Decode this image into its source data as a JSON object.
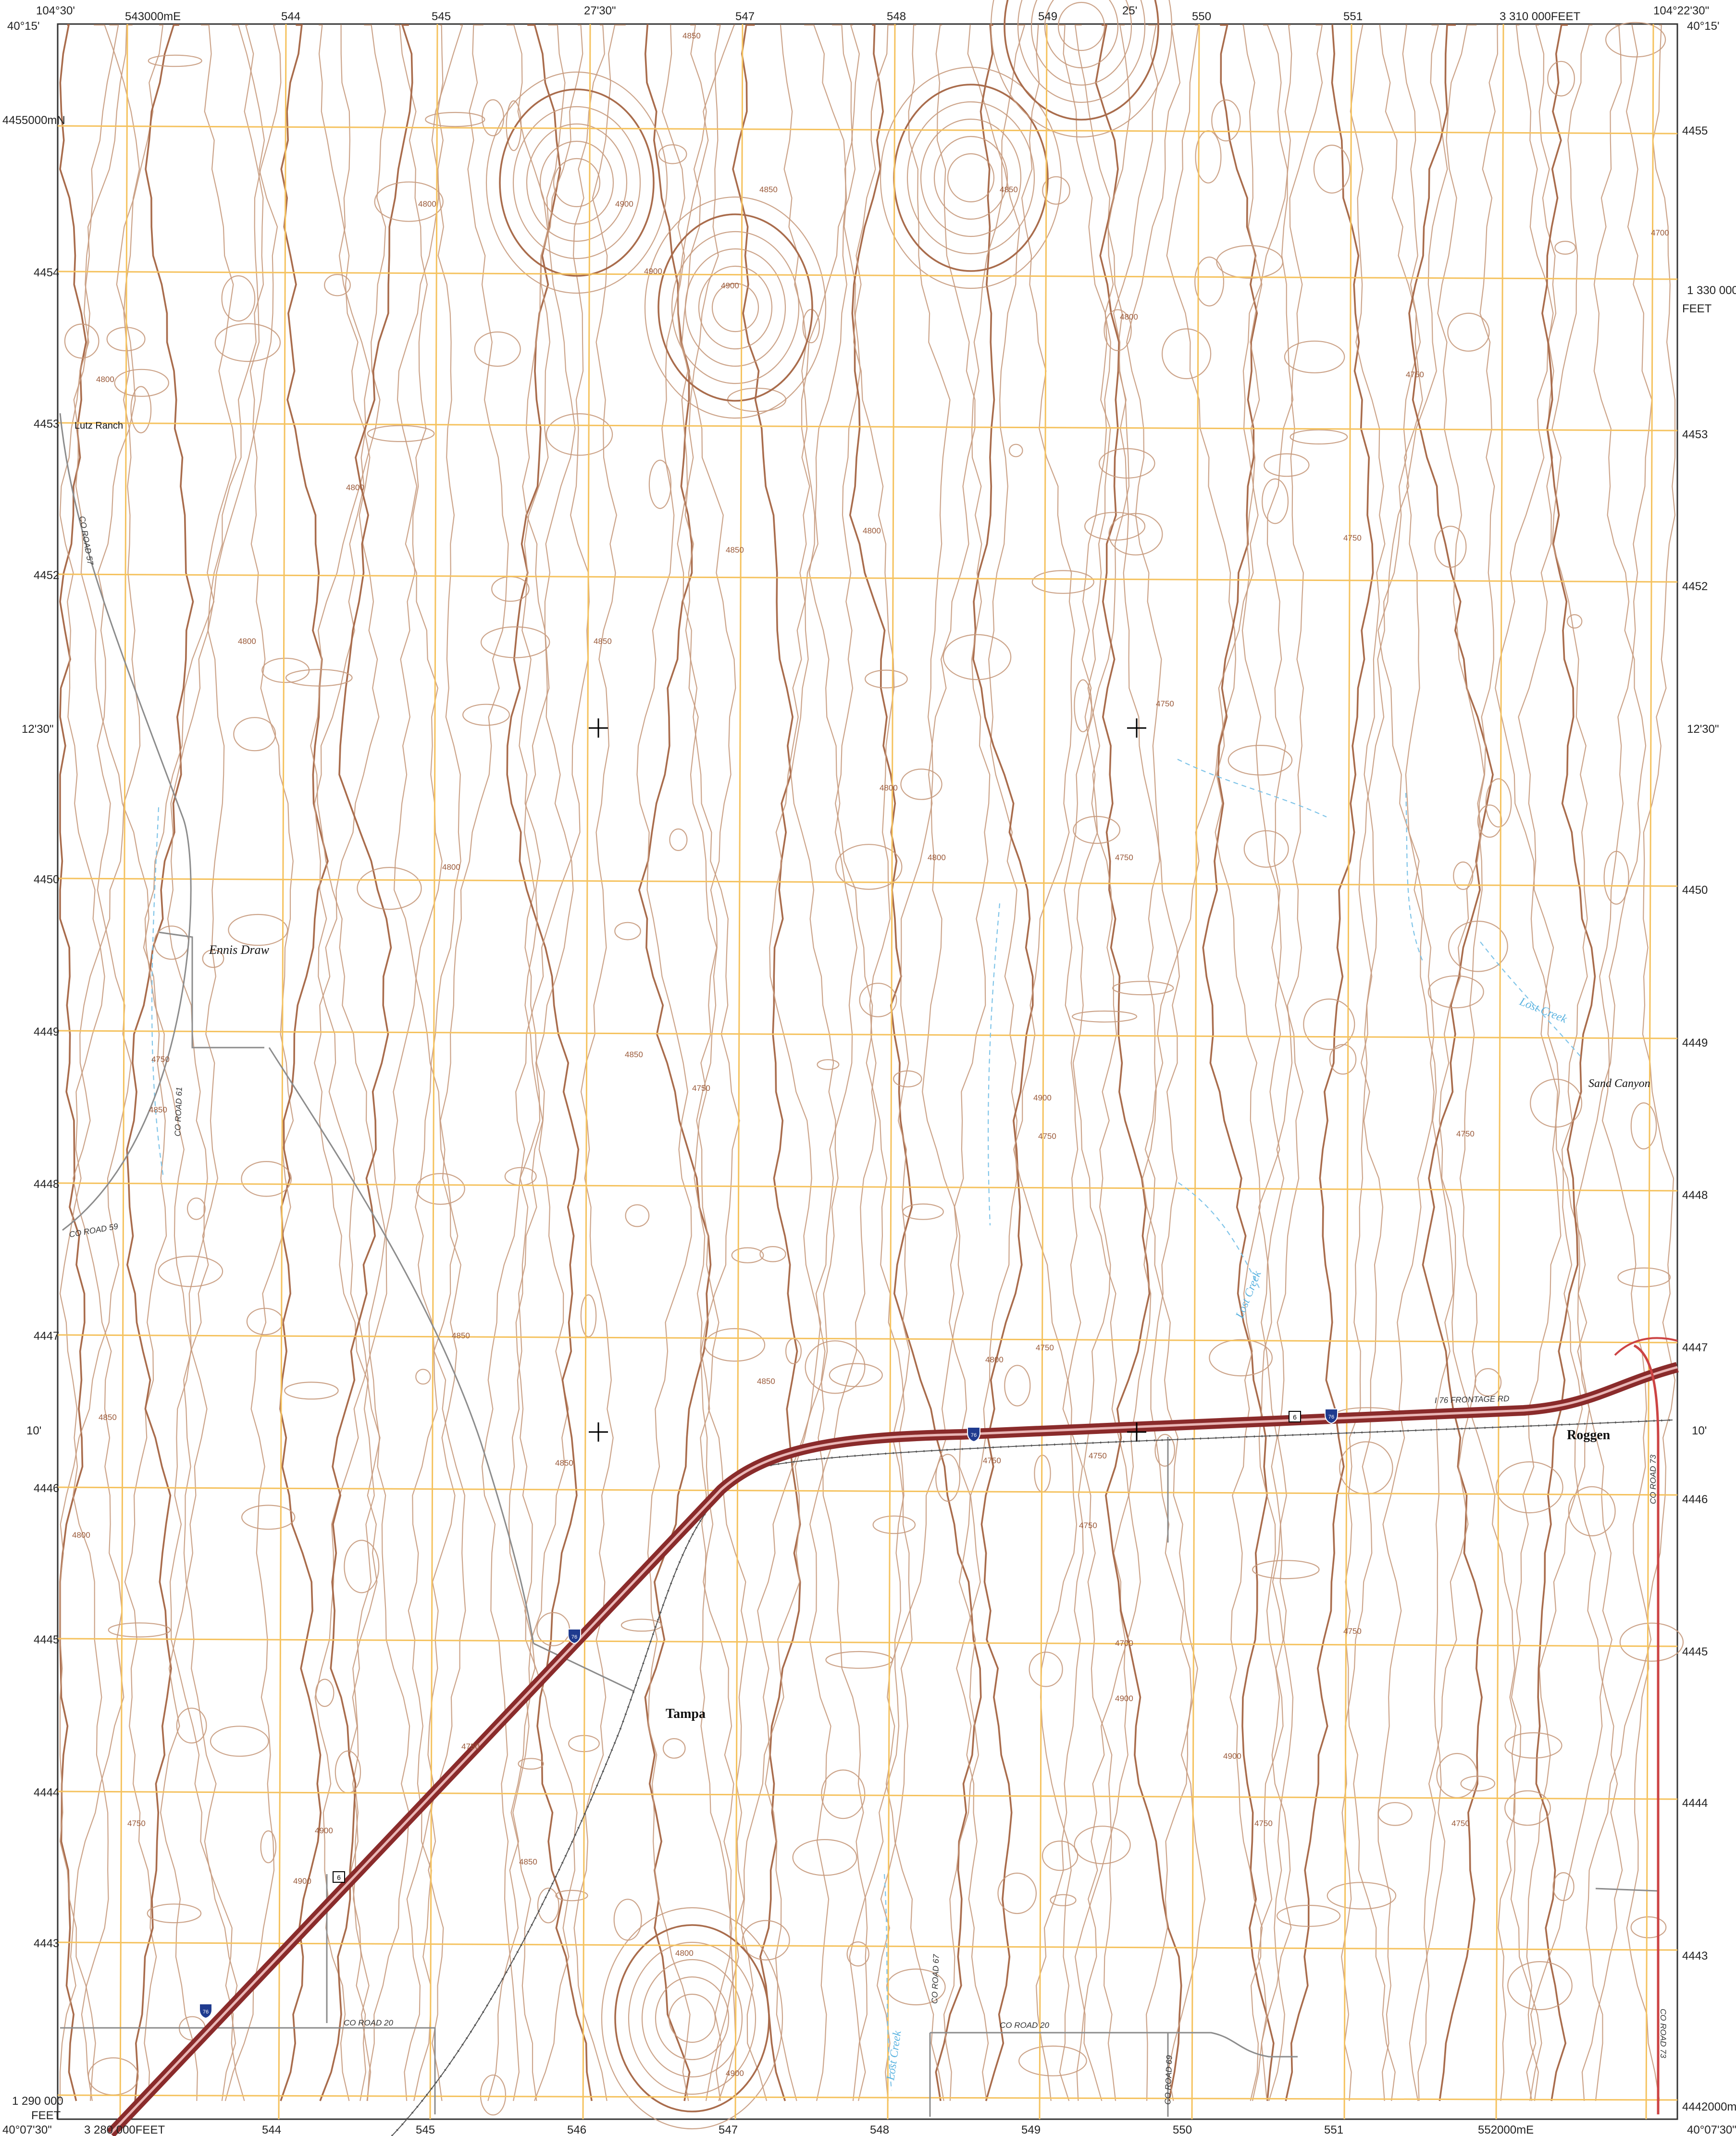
{
  "corners": {
    "top_left_lon": "104°30'",
    "top_left_lat": "40°15'",
    "top_right_lon": "104°22'30\"",
    "top_right_lat": "40°15'",
    "bottom_left_lat": "40°07'30\"",
    "bottom_right_lat": "40°07'30\""
  },
  "top_ticks": [
    "543000mE",
    "544",
    "545",
    "27'30\"",
    "547",
    "548",
    "549",
    "25'",
    "550",
    "551",
    "3 310 000FEET"
  ],
  "bottom_ticks": [
    "3 280 000FEET",
    "544",
    "545",
    "546",
    "547",
    "548",
    "549",
    "550",
    "551",
    "552000mE"
  ],
  "left_ticks": [
    "4455000mN",
    "4454",
    "4453",
    "4452",
    "12'30\"",
    "4450",
    "4449",
    "4448",
    "4447",
    "10'",
    "4446",
    "4445",
    "4444",
    "4443",
    "1 290 000",
    "FEET"
  ],
  "right_ticks": [
    "4455",
    "1 330 000",
    "FEET",
    "4453",
    "4452",
    "12'30\"",
    "4450",
    "4449",
    "4448",
    "4447",
    "10'",
    "4446",
    "4445",
    "4444",
    "4443",
    "4442000mN"
  ],
  "places": {
    "lutz_ranch": "Lutz Ranch",
    "ennis_draw": "Ennis Draw",
    "lost_creek_1": "Lost Creek",
    "lost_creek_2": "Lost Creek",
    "lost_creek_3": "Lost Creek",
    "sand_canyon": "Sand Canyon",
    "roggen": "Roggen",
    "tampa": "Tampa"
  },
  "roads": {
    "co_road_57": "CO ROAD 57",
    "co_road_61": "CO ROAD 61",
    "co_road_59": "CO ROAD 59",
    "i76_frontage": "I 76 FRONTAGE RD",
    "co_road_73a": "CO ROAD 73",
    "co_road_73b": "CO ROAD 73",
    "co_road_67": "CO ROAD 67",
    "co_road_20a": "CO ROAD 20",
    "co_road_20b": "CO ROAD 20",
    "co_road_69": "CO ROAD 69"
  },
  "shields": {
    "interstate": "76",
    "us_route": "6"
  },
  "elevations": [
    "4850",
    "4850",
    "4800",
    "4900",
    "4900",
    "4900",
    "4800",
    "4850",
    "4750",
    "4750",
    "4800",
    "4800",
    "4800",
    "4850",
    "4850",
    "4800",
    "4800",
    "4800",
    "4750",
    "4750",
    "4750",
    "4700",
    "4750",
    "4850",
    "4800",
    "4850",
    "4850",
    "4850",
    "4800",
    "4750",
    "4750",
    "4750",
    "4750",
    "4750",
    "4750",
    "4750",
    "4700",
    "4900",
    "4850",
    "4800",
    "4750",
    "4750",
    "4900",
    "4850",
    "4900",
    "4900",
    "4850",
    "4800",
    "4750",
    "4750",
    "4900",
    "4900"
  ],
  "colors": {
    "contour": "#c79a7d",
    "index_contour": "#a96c4c",
    "grid": "#f5c25e",
    "interstate": "#8a2b2b",
    "water": "#7fc4e8",
    "roads": "#8c8c8c"
  }
}
